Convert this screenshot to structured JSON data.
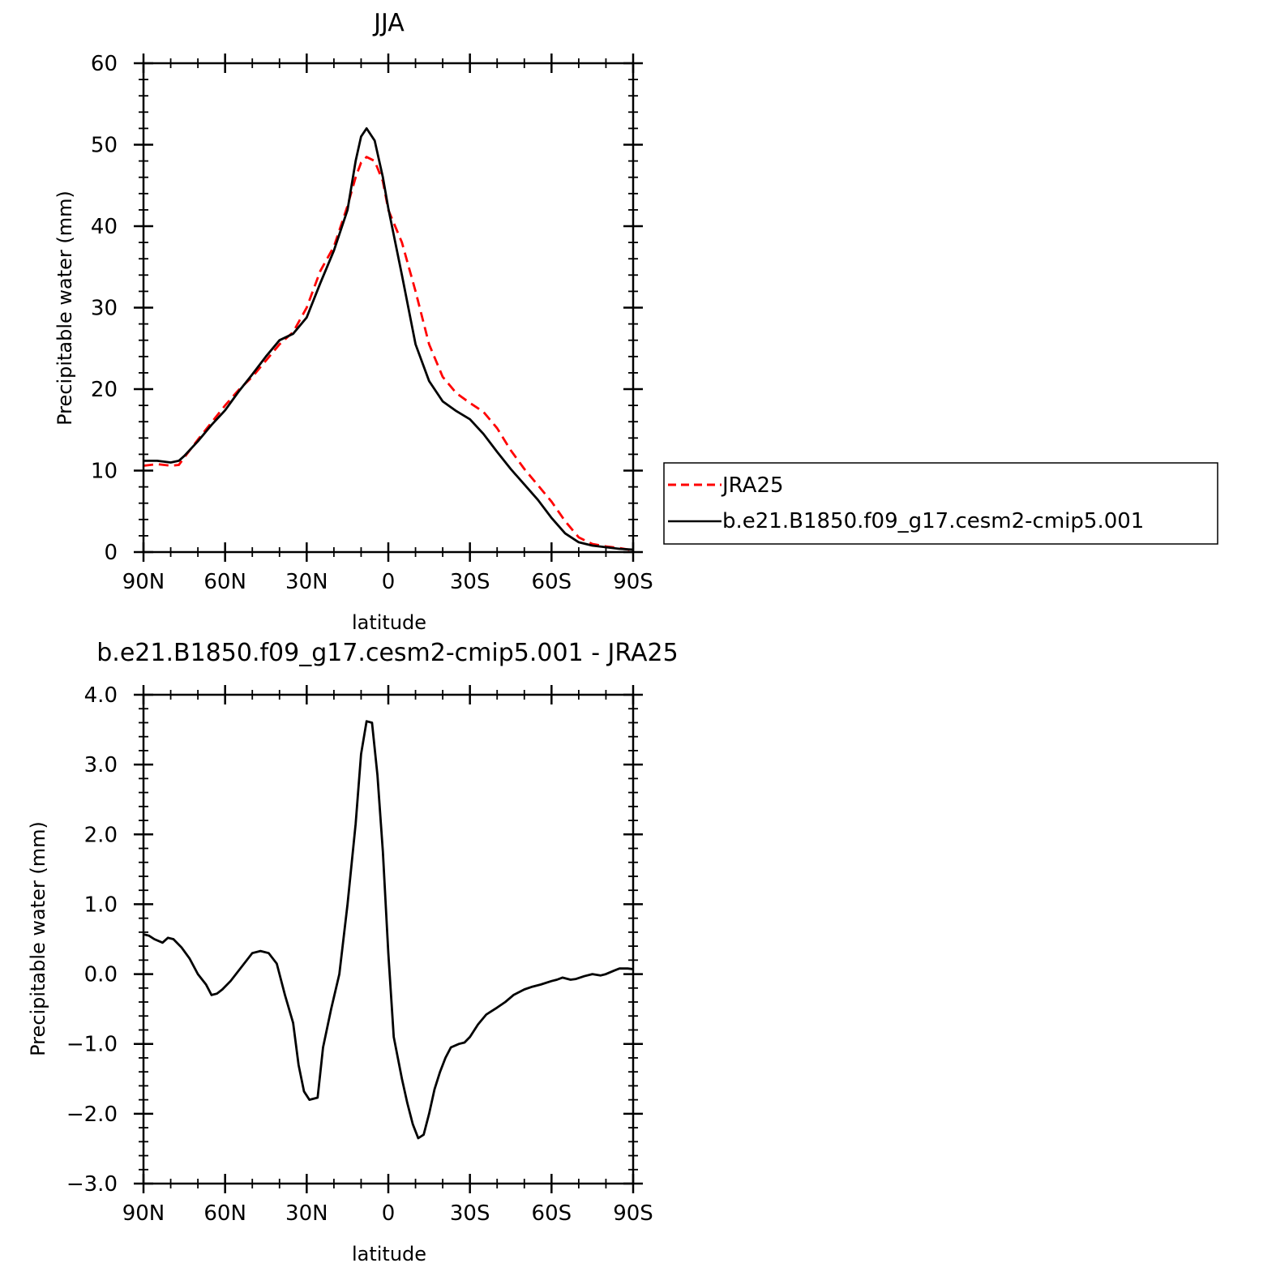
{
  "chart_data": [
    {
      "type": "line",
      "title": "JJA",
      "xlabel": "latitude",
      "ylabel": "Precipitable water (mm)",
      "xlim": [
        90,
        -90
      ],
      "ylim": [
        0,
        60
      ],
      "xticks": [
        90,
        60,
        30,
        0,
        -30,
        -60,
        -90
      ],
      "xtick_labels": [
        "90N",
        "60N",
        "30N",
        "0",
        "30S",
        "60S",
        "90S"
      ],
      "yticks": [
        0,
        10,
        20,
        30,
        40,
        50,
        60
      ],
      "ytick_labels": [
        "0",
        "10",
        "20",
        "30",
        "40",
        "50",
        "60"
      ],
      "legend": {
        "placement": "right of plot"
      },
      "series": [
        {
          "name": "JRA25",
          "color": "#ff0000",
          "dash": "dashed",
          "x": [
            90,
            85,
            80,
            77,
            75,
            70,
            65,
            60,
            55,
            50,
            45,
            40,
            35,
            30,
            25,
            20,
            15,
            12,
            10,
            8,
            5,
            2,
            0,
            -5,
            -10,
            -15,
            -20,
            -25,
            -30,
            -35,
            -40,
            -45,
            -50,
            -55,
            -60,
            -65,
            -70,
            -75,
            -80,
            -85,
            -90
          ],
          "y": [
            10.6,
            10.8,
            10.6,
            10.7,
            11.6,
            13.8,
            15.9,
            18.0,
            19.9,
            21.5,
            23.5,
            25.5,
            27.0,
            30.0,
            34.5,
            37.5,
            42.5,
            46.0,
            47.8,
            48.5,
            48.0,
            45.5,
            42.0,
            38.0,
            32.0,
            25.5,
            21.5,
            19.5,
            18.3,
            17.2,
            15.2,
            12.5,
            10.2,
            8.2,
            6.2,
            3.8,
            1.8,
            1.0,
            0.7,
            0.5,
            0.2
          ]
        },
        {
          "name": "b.e21.B1850.f09_g17.cesm2-cmip5.001",
          "color": "#000000",
          "dash": "solid",
          "x": [
            90,
            85,
            80,
            77,
            75,
            70,
            65,
            60,
            55,
            50,
            45,
            40,
            35,
            30,
            25,
            20,
            15,
            12,
            10,
            8,
            5,
            2,
            0,
            -5,
            -10,
            -15,
            -20,
            -25,
            -30,
            -35,
            -40,
            -45,
            -50,
            -55,
            -60,
            -65,
            -70,
            -75,
            -80,
            -85,
            -90
          ],
          "y": [
            11.2,
            11.2,
            11.0,
            11.2,
            11.8,
            13.6,
            15.6,
            17.4,
            19.7,
            21.8,
            24.0,
            26.0,
            26.8,
            28.8,
            33.0,
            37.0,
            42.0,
            48.0,
            51.0,
            52.0,
            50.5,
            46.0,
            42.2,
            34.0,
            25.5,
            21.0,
            18.5,
            17.3,
            16.3,
            14.5,
            12.3,
            10.2,
            8.3,
            6.4,
            4.2,
            2.3,
            1.2,
            0.8,
            0.6,
            0.4,
            0.3
          ]
        }
      ]
    },
    {
      "type": "line",
      "title": "b.e21.B1850.f09_g17.cesm2-cmip5.001 - JRA25",
      "xlabel": "latitude",
      "ylabel": "Precipitable water (mm)",
      "xlim": [
        90,
        -90
      ],
      "ylim": [
        -3.0,
        4.0
      ],
      "xticks": [
        90,
        60,
        30,
        0,
        -30,
        -60,
        -90
      ],
      "xtick_labels": [
        "90N",
        "60N",
        "30N",
        "0",
        "30S",
        "60S",
        "90S"
      ],
      "yticks": [
        -3.0,
        -2.0,
        -1.0,
        0.0,
        1.0,
        2.0,
        3.0,
        4.0
      ],
      "ytick_labels": [
        "−3.0",
        "−2.0",
        "−1.0",
        "0.0",
        "1.0",
        "2.0",
        "3.0",
        "4.0"
      ],
      "series": [
        {
          "color": "#000000",
          "dash": "solid",
          "x": [
            90,
            88,
            86,
            83,
            81,
            79,
            76,
            73,
            70,
            67,
            65,
            63,
            61,
            58,
            55,
            52,
            50,
            47,
            44,
            41,
            38,
            35,
            33,
            31,
            29,
            26,
            24,
            21,
            18,
            15,
            12,
            10,
            8,
            6,
            4,
            2,
            0,
            -2,
            -5,
            -7,
            -9,
            -11,
            -13,
            -15,
            -17,
            -19,
            -21,
            -23,
            -26,
            -28,
            -30,
            -33,
            -36,
            -38,
            -40,
            -43,
            -46,
            -50,
            -53,
            -56,
            -60,
            -62,
            -64,
            -67,
            -69,
            -72,
            -75,
            -78,
            -80,
            -83,
            -85,
            -88,
            -90
          ],
          "y": [
            0.57,
            0.55,
            0.5,
            0.45,
            0.52,
            0.5,
            0.38,
            0.22,
            0.0,
            -0.15,
            -0.3,
            -0.28,
            -0.22,
            -0.1,
            0.05,
            0.2,
            0.3,
            0.33,
            0.3,
            0.15,
            -0.3,
            -0.7,
            -1.3,
            -1.68,
            -1.8,
            -1.77,
            -1.05,
            -0.5,
            0.0,
            1.0,
            2.15,
            3.15,
            3.62,
            3.6,
            2.85,
            1.75,
            0.3,
            -0.9,
            -1.5,
            -1.85,
            -2.15,
            -2.35,
            -2.3,
            -2.0,
            -1.65,
            -1.4,
            -1.2,
            -1.05,
            -1.0,
            -0.98,
            -0.9,
            -0.72,
            -0.58,
            -0.53,
            -0.48,
            -0.4,
            -0.3,
            -0.22,
            -0.18,
            -0.15,
            -0.1,
            -0.08,
            -0.05,
            -0.08,
            -0.07,
            -0.03,
            0.0,
            -0.02,
            0.0,
            0.05,
            0.08,
            0.08,
            0.07
          ]
        }
      ]
    }
  ]
}
